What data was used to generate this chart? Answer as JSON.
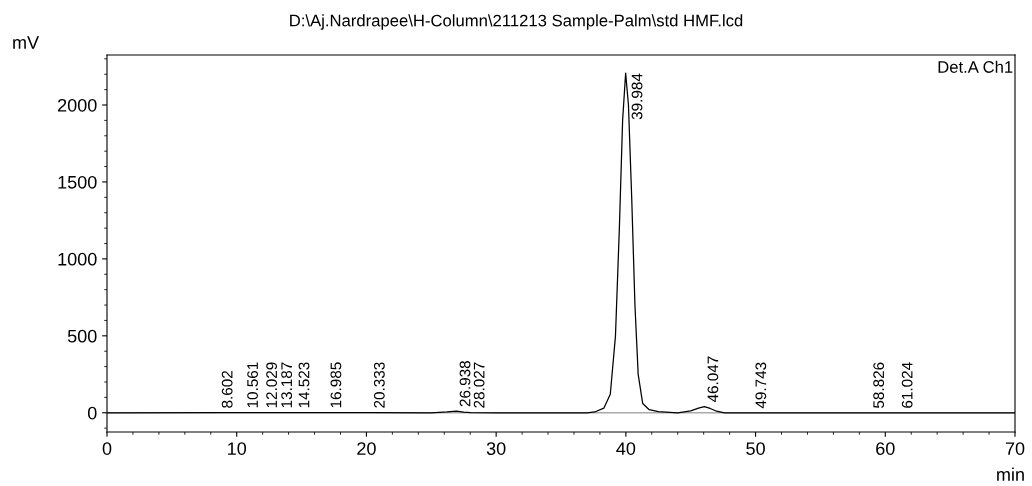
{
  "chart_data": {
    "type": "line",
    "title": "D:\\Aj.Nardrapee\\H-Column\\211213 Sample-Palm\\std HMF.lcd",
    "xlabel": "min",
    "ylabel": "mV",
    "x": [
      0,
      8.6,
      10.56,
      12.03,
      13.19,
      14.52,
      16.99,
      20.33,
      25,
      26.2,
      26.94,
      27.5,
      28.03,
      30,
      37.0,
      37.6,
      38.3,
      38.8,
      39.2,
      39.5,
      39.75,
      39.984,
      40.2,
      40.45,
      40.7,
      40.95,
      41.3,
      41.8,
      42.5,
      44,
      45,
      45.6,
      46.047,
      46.5,
      47.0,
      47.6,
      50,
      55,
      60,
      65,
      70
    ],
    "values": [
      0,
      1,
      1,
      1,
      1,
      1,
      1,
      1,
      0,
      5,
      10,
      4,
      1,
      0,
      0,
      5,
      30,
      120,
      500,
      1200,
      1900,
      2207,
      2000,
      1400,
      700,
      250,
      60,
      20,
      8,
      0,
      12,
      30,
      40,
      28,
      10,
      0,
      0,
      0,
      0,
      0,
      0
    ],
    "color": "#000000",
    "xlim": [
      0,
      70
    ],
    "ylim": [
      -125,
      2325
    ],
    "xticks": [
      0,
      10,
      20,
      30,
      40,
      50,
      60,
      70
    ],
    "yticks": [
      0,
      500,
      1000,
      1500,
      2000
    ],
    "grid": false,
    "legend": false,
    "ref_lines": [
      {
        "axis": "y",
        "value": 0,
        "color": "#aaaaaa"
      }
    ],
    "annotations": [
      "Det.A Ch1",
      {
        "text": "8.602",
        "x": 8.602,
        "y": 1
      },
      {
        "text": "10.561",
        "x": 10.561,
        "y": 1
      },
      {
        "text": "12.029",
        "x": 12.029,
        "y": 1
      },
      {
        "text": "13.187",
        "x": 13.187,
        "y": 1
      },
      {
        "text": "14.523",
        "x": 14.523,
        "y": 1
      },
      {
        "text": "16.985",
        "x": 16.985,
        "y": 1
      },
      {
        "text": "20.333",
        "x": 20.333,
        "y": 1
      },
      {
        "text": "26.938",
        "x": 26.938,
        "y": 10
      },
      {
        "text": "28.027",
        "x": 28.027,
        "y": 1
      },
      {
        "text": "39.984",
        "x": 39.984,
        "y": 2207
      },
      {
        "text": "46.047",
        "x": 46.047,
        "y": 40
      },
      {
        "text": "49.743",
        "x": 49.743,
        "y": 0
      },
      {
        "text": "58.826",
        "x": 58.826,
        "y": 0
      },
      {
        "text": "61.024",
        "x": 61.024,
        "y": 0
      }
    ]
  }
}
